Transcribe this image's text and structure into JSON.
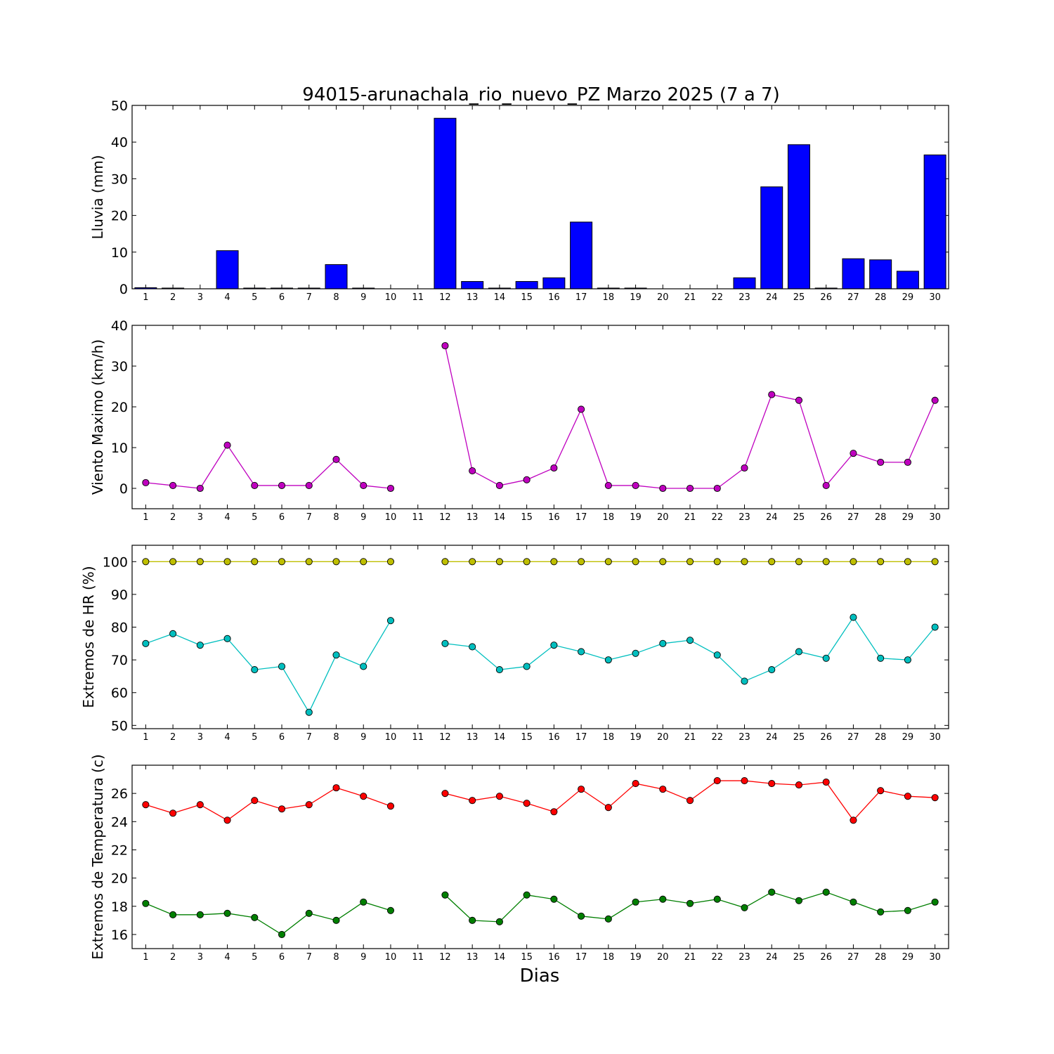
{
  "figure": {
    "title": "94015-arunachala_rio_nuevo_PZ Marzo 2025  (7 a 7)",
    "xlabel": "Dias"
  },
  "chart_data": [
    {
      "type": "bar",
      "ylabel": "Lluvia (mm)",
      "ylim": [
        0,
        50
      ],
      "yticks": [
        0,
        10,
        20,
        30,
        40,
        50
      ],
      "categories": [
        1,
        2,
        3,
        4,
        5,
        6,
        7,
        8,
        9,
        10,
        11,
        12,
        13,
        14,
        15,
        16,
        17,
        18,
        19,
        20,
        21,
        22,
        23,
        24,
        25,
        26,
        27,
        28,
        29,
        30
      ],
      "values": [
        0.3,
        0.2,
        0,
        10.4,
        0.2,
        0.2,
        0.2,
        6.6,
        0.2,
        0,
        0,
        46.5,
        2,
        0.2,
        2,
        3,
        18.2,
        0.2,
        0.2,
        0,
        0,
        0,
        3,
        27.8,
        39.3,
        0.2,
        8.2,
        7.9,
        4.8,
        36.5
      ],
      "colors": {
        "bar": "#0000ff",
        "edge": "#000000"
      },
      "grid": false
    },
    {
      "type": "line",
      "ylabel": "Viento Maximo (km/h)",
      "ylim": [
        -5,
        40
      ],
      "yticks": [
        0,
        10,
        20,
        30,
        40
      ],
      "x": [
        1,
        2,
        3,
        4,
        5,
        6,
        7,
        8,
        9,
        10,
        11,
        12,
        13,
        14,
        15,
        16,
        17,
        18,
        19,
        20,
        21,
        22,
        23,
        24,
        25,
        26,
        27,
        28,
        29,
        30
      ],
      "series": [
        {
          "color": "#bf00bf",
          "values": [
            1.4,
            0.7,
            0,
            10.6,
            0.7,
            0.7,
            0.7,
            7.1,
            0.7,
            0,
            null,
            35,
            4.3,
            0.7,
            2.1,
            5,
            19.4,
            0.7,
            0.7,
            0,
            0,
            0,
            5,
            23,
            21.6,
            0.7,
            8.6,
            6.4,
            6.4,
            21.6
          ]
        }
      ],
      "grid": false
    },
    {
      "type": "line",
      "ylabel": "Extremos de HR (%)",
      "ylim": [
        49,
        105
      ],
      "yticks": [
        50,
        60,
        70,
        80,
        90,
        100
      ],
      "x": [
        1,
        2,
        3,
        4,
        5,
        6,
        7,
        8,
        9,
        10,
        11,
        12,
        13,
        14,
        15,
        16,
        17,
        18,
        19,
        20,
        21,
        22,
        23,
        24,
        25,
        26,
        27,
        28,
        29,
        30
      ],
      "series": [
        {
          "color": "#bfbf00",
          "values": [
            100,
            100,
            100,
            100,
            100,
            100,
            100,
            100,
            100,
            100,
            null,
            100,
            100,
            100,
            100,
            100,
            100,
            100,
            100,
            100,
            100,
            100,
            100,
            100,
            100,
            100,
            100,
            100,
            100,
            100
          ]
        },
        {
          "color": "#00bfbf",
          "values": [
            75,
            78,
            74.5,
            76.5,
            67,
            68,
            54,
            71.5,
            68,
            82,
            null,
            75,
            74,
            67,
            68,
            74.5,
            72.5,
            70,
            72,
            75,
            76,
            71.5,
            63.5,
            67,
            72.5,
            70.5,
            83,
            70.5,
            70,
            80
          ]
        }
      ],
      "grid": false
    },
    {
      "type": "line",
      "ylabel": "Extremos de Temperatura (c)",
      "ylim": [
        15,
        28
      ],
      "yticks": [
        16,
        18,
        20,
        22,
        24,
        26
      ],
      "x": [
        1,
        2,
        3,
        4,
        5,
        6,
        7,
        8,
        9,
        10,
        11,
        12,
        13,
        14,
        15,
        16,
        17,
        18,
        19,
        20,
        21,
        22,
        23,
        24,
        25,
        26,
        27,
        28,
        29,
        30
      ],
      "series": [
        {
          "color": "#ff0000",
          "values": [
            25.2,
            24.6,
            25.2,
            24.1,
            25.5,
            24.9,
            25.2,
            26.4,
            25.8,
            25.1,
            null,
            26,
            25.5,
            25.8,
            25.3,
            24.7,
            26.3,
            25,
            26.7,
            26.3,
            25.5,
            26.9,
            26.9,
            26.7,
            26.6,
            26.8,
            24.1,
            26.2,
            25.8,
            25.7
          ]
        },
        {
          "color": "#007f00",
          "values": [
            18.2,
            17.4,
            17.4,
            17.5,
            17.2,
            16,
            17.5,
            17,
            18.3,
            17.7,
            null,
            18.8,
            17,
            16.9,
            18.8,
            18.5,
            17.3,
            17.1,
            18.3,
            18.5,
            18.2,
            18.5,
            17.9,
            19,
            18.4,
            19,
            18.3,
            17.6,
            17.7,
            18.3
          ]
        }
      ],
      "grid": false
    }
  ]
}
